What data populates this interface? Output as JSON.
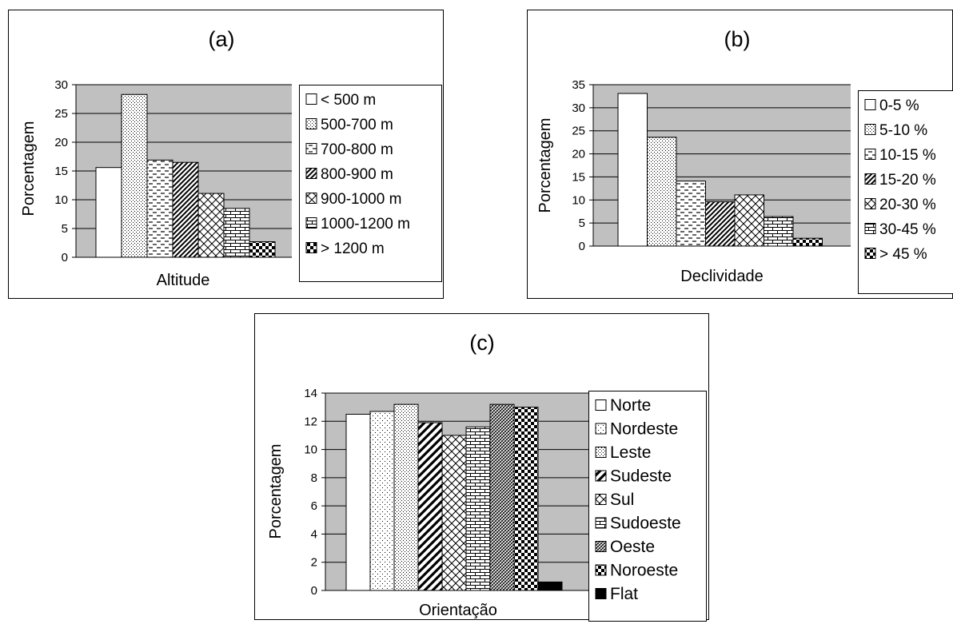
{
  "chart_data": [
    {
      "id": "a",
      "type": "bar",
      "title": "(a)",
      "xlabel": "Altitude",
      "ylabel": "Porcentagem",
      "ylim": [
        0,
        30
      ],
      "yticks": [
        0,
        5,
        10,
        15,
        20,
        25,
        30
      ],
      "grid": true,
      "legend_position": "right",
      "series": [
        {
          "name": "< 500 m",
          "value": 15.6,
          "pattern": "white"
        },
        {
          "name": "500-700 m",
          "value": 28.3,
          "pattern": "dots"
        },
        {
          "name": "700-800 m",
          "value": 16.9,
          "pattern": "dashes"
        },
        {
          "name": "800-900 m",
          "value": 16.5,
          "pattern": "diag-wide"
        },
        {
          "name": "900-1000 m",
          "value": 11.1,
          "pattern": "lattice"
        },
        {
          "name": "1000-1200 m",
          "value": 8.5,
          "pattern": "brick"
        },
        {
          "name": "> 1200 m",
          "value": 2.7,
          "pattern": "checker"
        }
      ]
    },
    {
      "id": "b",
      "type": "bar",
      "title": "(b)",
      "xlabel": "Declividade",
      "ylabel": "Porcentagem",
      "ylim": [
        0,
        35
      ],
      "yticks": [
        0,
        5,
        10,
        15,
        20,
        25,
        30,
        35
      ],
      "grid": true,
      "legend_position": "right",
      "series": [
        {
          "name": "0-5 %",
          "value": 33.1,
          "pattern": "white"
        },
        {
          "name": "5-10 %",
          "value": 23.6,
          "pattern": "dots"
        },
        {
          "name": "10-15 %",
          "value": 14.1,
          "pattern": "dashes"
        },
        {
          "name": "15-20 %",
          "value": 9.6,
          "pattern": "diag-wide"
        },
        {
          "name": "20-30 %",
          "value": 11.1,
          "pattern": "lattice"
        },
        {
          "name": "30-45 %",
          "value": 6.4,
          "pattern": "brick"
        },
        {
          "name": "> 45 %",
          "value": 1.7,
          "pattern": "checker"
        }
      ]
    },
    {
      "id": "c",
      "type": "bar",
      "title": "(c)",
      "xlabel": "Orientação",
      "ylabel": "Porcentagem",
      "ylim": [
        0,
        14
      ],
      "yticks": [
        0,
        2,
        4,
        6,
        8,
        10,
        12,
        14
      ],
      "grid": true,
      "legend_position": "right",
      "series": [
        {
          "name": "Norte",
          "value": 12.5,
          "pattern": "white"
        },
        {
          "name": "Nordeste",
          "value": 12.7,
          "pattern": "sparse-dots"
        },
        {
          "name": "Leste",
          "value": 13.2,
          "pattern": "dots"
        },
        {
          "name": "Sudeste",
          "value": 11.9,
          "pattern": "diag-bold"
        },
        {
          "name": "Sul",
          "value": 11.0,
          "pattern": "lattice"
        },
        {
          "name": "Sudoeste",
          "value": 11.6,
          "pattern": "brick"
        },
        {
          "name": "Oeste",
          "value": 13.2,
          "pattern": "diag-dense"
        },
        {
          "name": "Noroeste",
          "value": 13.0,
          "pattern": "checker"
        },
        {
          "name": "Flat",
          "value": 0.6,
          "pattern": "solid"
        }
      ]
    }
  ],
  "colors": {
    "plot_background": "#c0c0c0",
    "bar_outline": "#000000",
    "panel_border": "#000000"
  }
}
